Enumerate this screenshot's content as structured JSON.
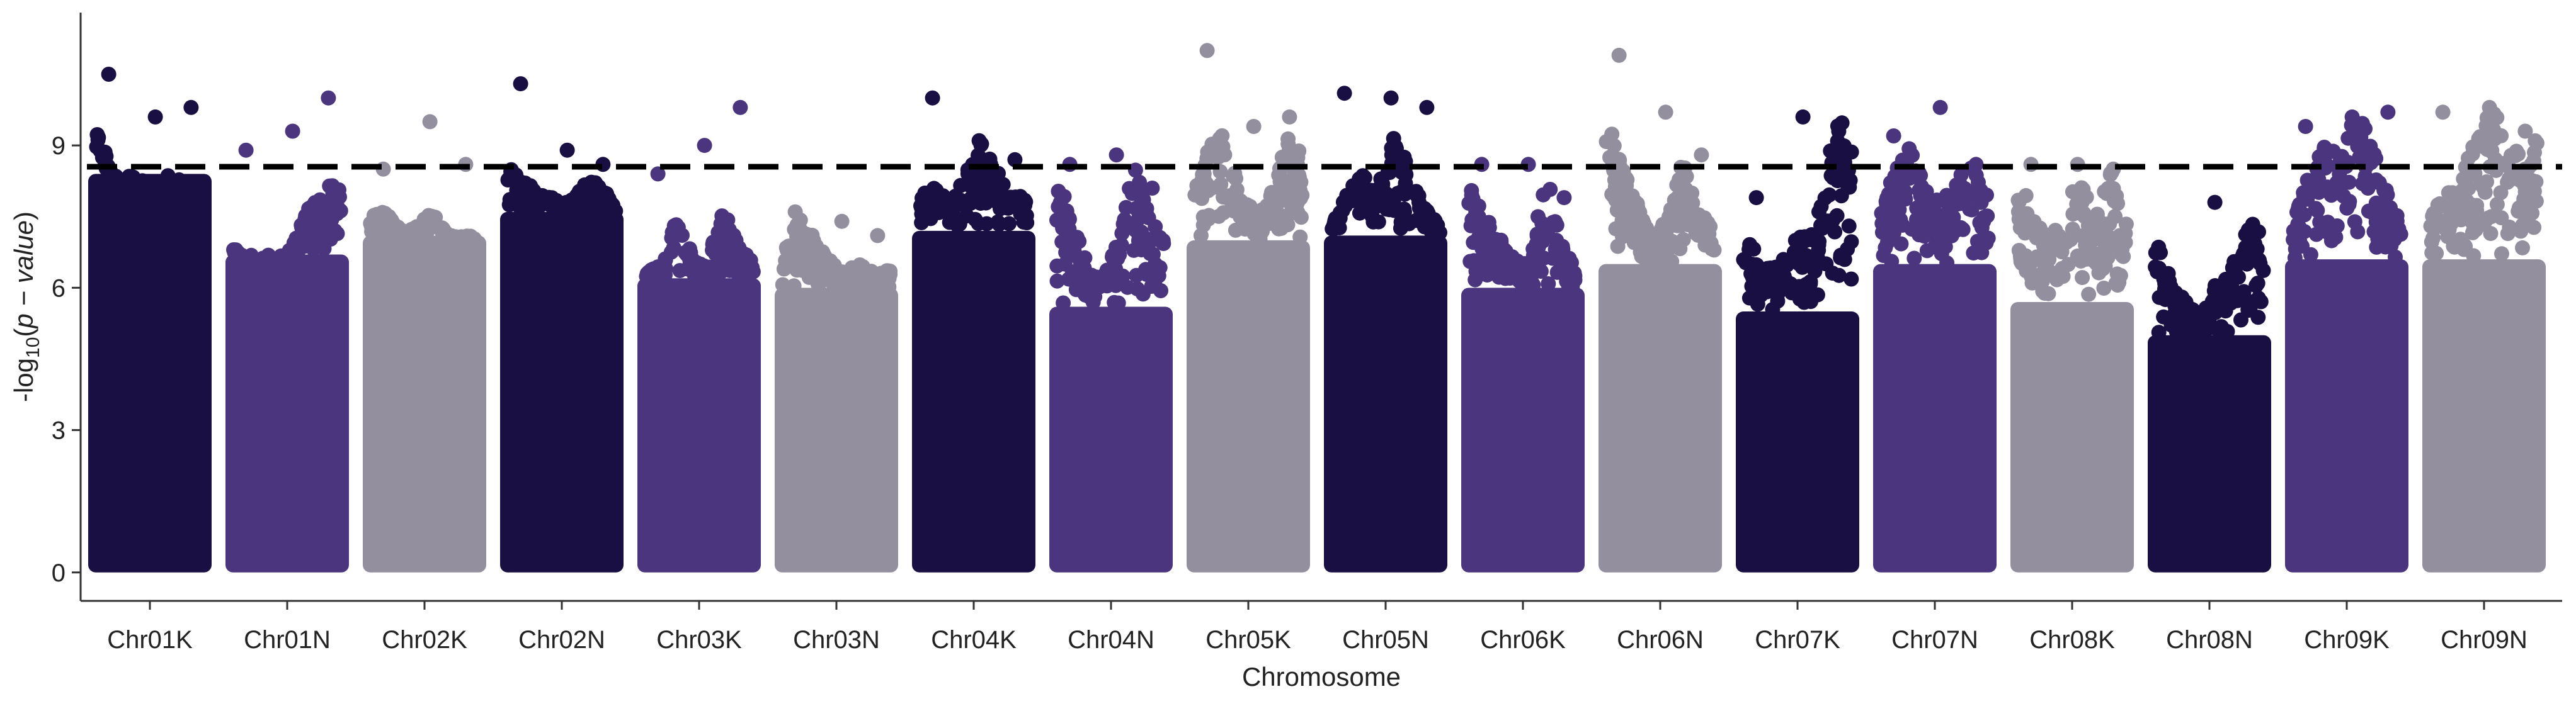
{
  "chart_data": {
    "type": "scatter",
    "subtype": "manhattan",
    "title": "",
    "xlabel": "Chromosome",
    "ylabel_prefix": "-log",
    "ylabel_sub": "10",
    "ylabel_open": "(",
    "ylabel_var": "p − value",
    "ylabel_close": ")",
    "ylim": [
      -0.6,
      11.8
    ],
    "yticks": [
      0,
      3,
      6,
      9
    ],
    "threshold": 8.55,
    "grid": false,
    "legend": "none",
    "colors": [
      "#1a0f42",
      "#4b357e",
      "#938f9f"
    ],
    "chromosomes": [
      {
        "name": "Chr01K",
        "color": "#1a0f42",
        "top": 8.4,
        "profile": [
          9.6,
          8.4,
          7.3,
          7.0,
          7.6,
          7.5,
          7.2,
          6.8
        ],
        "peaks": [
          10.5,
          9.6,
          9.8
        ]
      },
      {
        "name": "Chr01N",
        "color": "#4b357e",
        "top": 6.7,
        "profile": [
          6.9,
          6.4,
          6.3,
          6.4,
          7.0,
          7.8,
          8.1,
          8.3
        ],
        "peaks": [
          8.9,
          9.3,
          10.0
        ]
      },
      {
        "name": "Chr02K",
        "color": "#938f9f",
        "top": 7.1,
        "profile": [
          7.5,
          7.7,
          7.2,
          7.3,
          7.6,
          7.1,
          7.0,
          6.8
        ],
        "peaks": [
          8.5,
          9.5,
          8.6
        ]
      },
      {
        "name": "Chr02N",
        "color": "#1a0f42",
        "top": 7.6,
        "profile": [
          8.6,
          8.3,
          8.0,
          7.9,
          7.8,
          8.2,
          8.3,
          7.6
        ],
        "peaks": [
          10.3,
          8.9,
          8.6
        ]
      },
      {
        "name": "Chr03K",
        "color": "#4b357e",
        "top": 6.2,
        "profile": [
          6.3,
          6.5,
          7.4,
          6.8,
          6.4,
          7.8,
          6.9,
          6.6
        ],
        "peaks": [
          8.4,
          9.0,
          9.8
        ]
      },
      {
        "name": "Chr03N",
        "color": "#938f9f",
        "top": 6.0,
        "profile": [
          6.7,
          7.5,
          7.1,
          6.6,
          6.4,
          6.5,
          6.3,
          6.4
        ],
        "peaks": [
          7.6,
          7.4,
          7.1
        ]
      },
      {
        "name": "Chr04K",
        "color": "#1a0f42",
        "top": 7.2,
        "profile": [
          7.9,
          8.2,
          7.8,
          8.4,
          9.1,
          8.5,
          8.0,
          7.9
        ],
        "peaks": [
          10.0,
          9.1,
          8.7
        ]
      },
      {
        "name": "Chr04N",
        "color": "#4b357e",
        "top": 5.6,
        "profile": [
          8.5,
          7.4,
          6.5,
          6.2,
          7.0,
          8.6,
          7.5,
          7.1
        ],
        "peaks": [
          8.6,
          8.8,
          8.1
        ]
      },
      {
        "name": "Chr05K",
        "color": "#938f9f",
        "top": 7.0,
        "profile": [
          8.1,
          9.0,
          9.3,
          7.9,
          7.6,
          8.1,
          9.2,
          8.8
        ],
        "peaks": [
          11.0,
          9.4,
          9.6
        ]
      },
      {
        "name": "Chr05N",
        "color": "#1a0f42",
        "top": 7.1,
        "profile": [
          7.3,
          8.0,
          8.4,
          8.1,
          9.2,
          8.6,
          7.7,
          7.3
        ],
        "peaks": [
          10.1,
          10.0,
          9.8
        ]
      },
      {
        "name": "Chr06K",
        "color": "#4b357e",
        "top": 6.0,
        "profile": [
          8.3,
          7.5,
          7.1,
          6.6,
          6.5,
          8.6,
          6.9,
          6.4
        ],
        "peaks": [
          8.6,
          8.6,
          7.9
        ]
      },
      {
        "name": "Chr06N",
        "color": "#938f9f",
        "top": 6.5,
        "profile": [
          9.8,
          8.6,
          7.8,
          7.0,
          7.5,
          8.8,
          7.6,
          7.3
        ],
        "peaks": [
          10.9,
          9.7,
          8.8
        ]
      },
      {
        "name": "Chr07K",
        "color": "#1a0f42",
        "top": 5.5,
        "profile": [
          7.9,
          6.3,
          6.5,
          7.0,
          7.1,
          7.7,
          9.6,
          9.3
        ],
        "peaks": [
          7.9,
          9.6,
          9.3
        ]
      },
      {
        "name": "Chr07N",
        "color": "#4b357e",
        "top": 6.5,
        "profile": [
          7.6,
          8.6,
          9.0,
          8.0,
          7.8,
          8.4,
          8.6,
          7.9
        ],
        "peaks": [
          9.2,
          9.8,
          8.6
        ]
      },
      {
        "name": "Chr08K",
        "color": "#938f9f",
        "top": 5.7,
        "profile": [
          8.5,
          7.5,
          7.0,
          7.6,
          8.4,
          7.4,
          8.6,
          7.4
        ],
        "peaks": [
          8.6,
          8.6,
          8.5
        ]
      },
      {
        "name": "Chr08N",
        "color": "#1a0f42",
        "top": 5.0,
        "profile": [
          7.2,
          6.1,
          5.7,
          5.4,
          6.2,
          6.6,
          7.6,
          7.0
        ],
        "peaks": [
          6.3,
          7.8,
          7.2
        ]
      },
      {
        "name": "Chr09K",
        "color": "#4b357e",
        "top": 6.6,
        "profile": [
          7.5,
          8.3,
          9.4,
          8.7,
          9.6,
          9.5,
          8.1,
          7.4
        ],
        "peaks": [
          9.4,
          9.6,
          9.7
        ]
      },
      {
        "name": "Chr09N",
        "color": "#938f9f",
        "top": 6.6,
        "profile": [
          7.4,
          8.1,
          8.5,
          9.1,
          9.8,
          9.5,
          8.6,
          9.3
        ],
        "peaks": [
          9.7,
          9.8,
          9.3
        ]
      }
    ]
  }
}
